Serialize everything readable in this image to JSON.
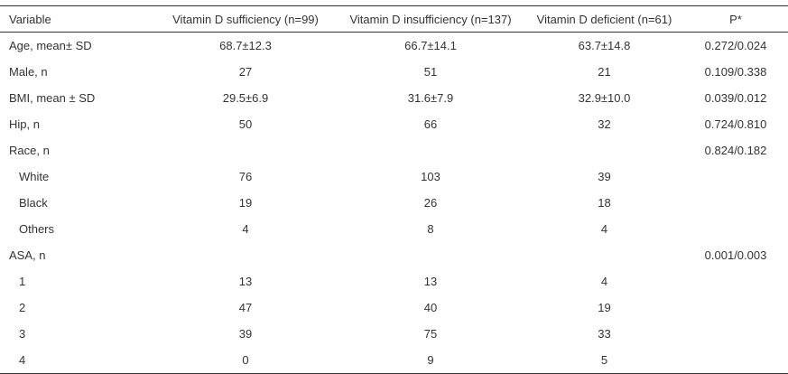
{
  "table": {
    "headers": {
      "variable": "Variable",
      "sufficiency": "Vitamin D sufficiency (n=99)",
      "insufficiency": "Vitamin D insufficiency (n=137)",
      "deficient": "Vitamin D deficient (n=61)",
      "p": "P*"
    },
    "rows": [
      {
        "variable": "Age, mean± SD",
        "sufficiency": "68.7±12.3",
        "insufficiency": "66.7±14.1",
        "deficient": "63.7±14.8",
        "p": "0.272/0.024"
      },
      {
        "variable": "Male, n",
        "sufficiency": "27",
        "insufficiency": "51",
        "deficient": "21",
        "p": "0.109/0.338"
      },
      {
        "variable": "BMI, mean ± SD",
        "sufficiency": "29.5±6.9",
        "insufficiency": "31.6±7.9",
        "deficient": "32.9±10.0",
        "p": "0.039/0.012"
      },
      {
        "variable": "Hip, n",
        "sufficiency": "50",
        "insufficiency": "66",
        "deficient": "32",
        "p": "0.724/0.810"
      },
      {
        "variable": "Race, n",
        "sufficiency": "",
        "insufficiency": "",
        "deficient": "",
        "p": "0.824/0.182"
      },
      {
        "variable": "White",
        "sufficiency": "76",
        "insufficiency": "103",
        "deficient": "39",
        "p": ""
      },
      {
        "variable": "Black",
        "sufficiency": "19",
        "insufficiency": "26",
        "deficient": "18",
        "p": ""
      },
      {
        "variable": "Others",
        "sufficiency": "4",
        "insufficiency": "8",
        "deficient": "4",
        "p": ""
      },
      {
        "variable": "ASA, n",
        "sufficiency": "",
        "insufficiency": "",
        "deficient": "",
        "p": "0.001/0.003"
      },
      {
        "variable": "1",
        "sufficiency": "13",
        "insufficiency": "13",
        "deficient": "4",
        "p": ""
      },
      {
        "variable": "2",
        "sufficiency": "47",
        "insufficiency": "40",
        "deficient": "19",
        "p": ""
      },
      {
        "variable": "3",
        "sufficiency": "39",
        "insufficiency": "75",
        "deficient": "33",
        "p": ""
      },
      {
        "variable": "4",
        "sufficiency": "0",
        "insufficiency": "9",
        "deficient": "5",
        "p": ""
      }
    ]
  }
}
